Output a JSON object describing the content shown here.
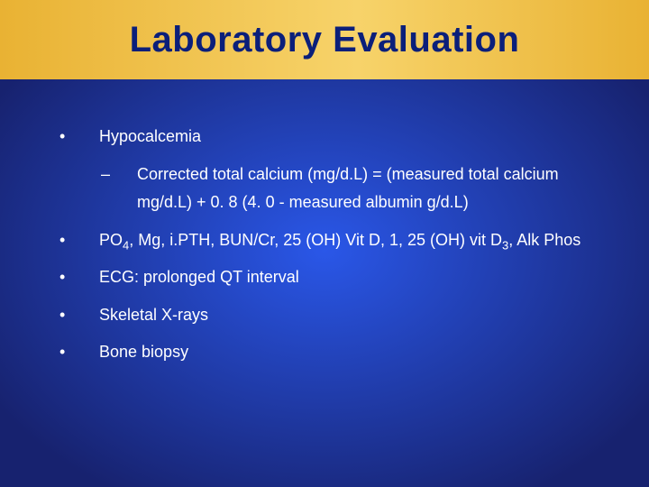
{
  "slide": {
    "title": "Laboratory Evaluation",
    "title_color": "#0b1f7a",
    "title_fontsize": 40,
    "header_bg_left": "#e9b233",
    "header_bg_right": "#f7d36a",
    "body_bg_center": "#2a57e8",
    "body_bg_edge": "#17226f",
    "text_color": "#ffffff",
    "text_fontsize": 18,
    "bullet_marker": "•",
    "sub_marker": "–",
    "bullets": [
      {
        "text": "Hypocalcemia",
        "sub": [
          {
            "text": "Corrected total calcium (mg/d.L) = (measured total calcium mg/d.L) + 0. 8 (4. 0 - measured albumin g/d.L)"
          }
        ]
      },
      {
        "html": "PO<sub>4</sub>, Mg, i.PTH, BUN/Cr, 25 (OH) Vit D, 1, 25 (OH) vit D<sub>3</sub>, Alk Phos"
      },
      {
        "text": "ECG: prolonged QT interval"
      },
      {
        "text": "Skeletal X-rays"
      },
      {
        "text": "Bone biopsy"
      }
    ]
  }
}
